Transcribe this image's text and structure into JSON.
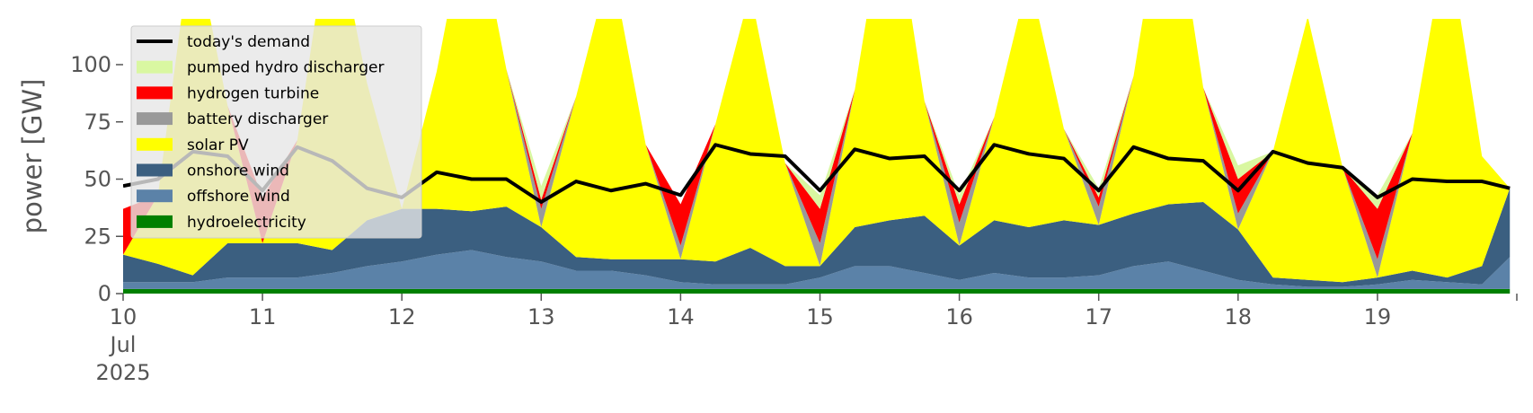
{
  "chart_data": {
    "type": "area",
    "ylabel": "power [GW]",
    "xlabel": "",
    "ylim": [
      0,
      120
    ],
    "xlim_days": [
      10,
      20
    ],
    "yticks": [
      0,
      25,
      50,
      75,
      100
    ],
    "xticks": [
      {
        "day": 10,
        "lines": [
          "10",
          "Jul",
          "2025"
        ]
      },
      {
        "day": 11,
        "lines": [
          "11"
        ]
      },
      {
        "day": 12,
        "lines": [
          "12"
        ]
      },
      {
        "day": 13,
        "lines": [
          "13"
        ]
      },
      {
        "day": 14,
        "lines": [
          "14"
        ]
      },
      {
        "day": 15,
        "lines": [
          "15"
        ]
      },
      {
        "day": 16,
        "lines": [
          "16"
        ]
      },
      {
        "day": 17,
        "lines": [
          "17"
        ]
      },
      {
        "day": 18,
        "lines": [
          "18"
        ]
      },
      {
        "day": 19,
        "lines": [
          "19"
        ]
      }
    ],
    "x_days": [
      10.0,
      10.25,
      10.5,
      10.75,
      11.0,
      11.25,
      11.5,
      11.75,
      12.0,
      12.25,
      12.5,
      12.75,
      13.0,
      13.25,
      13.5,
      13.75,
      14.0,
      14.25,
      14.5,
      14.75,
      15.0,
      15.25,
      15.5,
      15.75,
      16.0,
      16.25,
      16.5,
      16.75,
      17.0,
      17.25,
      17.5,
      17.75,
      18.0,
      18.25,
      18.5,
      18.75,
      19.0,
      19.25,
      19.5,
      19.75,
      19.95
    ],
    "series": [
      {
        "name": "hydroelectricity",
        "color": "#008000",
        "values": [
          2,
          2,
          2,
          2,
          2,
          2,
          2,
          2,
          2,
          2,
          2,
          2,
          2,
          2,
          2,
          2,
          2,
          2,
          2,
          2,
          2,
          2,
          2,
          2,
          2,
          2,
          2,
          2,
          2,
          2,
          2,
          2,
          2,
          2,
          2,
          2,
          2,
          2,
          2,
          2,
          2
        ]
      },
      {
        "name": "offshore wind",
        "color": "#5b82a8",
        "values": [
          3,
          3,
          3,
          5,
          5,
          5,
          7,
          10,
          12,
          15,
          17,
          14,
          12,
          8,
          8,
          6,
          3,
          2,
          2,
          2,
          5,
          10,
          10,
          7,
          4,
          7,
          5,
          5,
          6,
          10,
          12,
          8,
          4,
          2,
          1,
          1,
          2,
          4,
          3,
          2,
          14
        ]
      },
      {
        "name": "onshore wind",
        "color": "#3b5f80",
        "values": [
          12,
          8,
          3,
          15,
          15,
          15,
          10,
          20,
          23,
          20,
          17,
          22,
          15,
          6,
          5,
          7,
          10,
          10,
          16,
          8,
          5,
          17,
          20,
          25,
          15,
          23,
          22,
          25,
          22,
          23,
          25,
          30,
          22,
          3,
          3,
          2,
          3,
          4,
          2,
          8,
          30
        ]
      },
      {
        "name": "solar PV",
        "color": "#ffff00",
        "values": [
          0,
          30,
          150,
          60,
          0,
          45,
          150,
          60,
          0,
          60,
          140,
          60,
          0,
          70,
          130,
          50,
          0,
          60,
          112,
          45,
          0,
          60,
          150,
          50,
          0,
          45,
          110,
          40,
          0,
          60,
          150,
          50,
          0,
          55,
          115,
          50,
          0,
          60,
          150,
          48,
          0
        ]
      },
      {
        "name": "battery discharger",
        "color": "#999999",
        "values": [
          0,
          0,
          0,
          0,
          0,
          0,
          0,
          0,
          0,
          0,
          0,
          0,
          8,
          0,
          0,
          0,
          6,
          0,
          0,
          0,
          10,
          0,
          0,
          0,
          10,
          0,
          0,
          0,
          8,
          0,
          0,
          0,
          7,
          0,
          0,
          0,
          8,
          0,
          0,
          0,
          0
        ]
      },
      {
        "name": "hydrogen turbine",
        "color": "#ff0000",
        "values": [
          20,
          0,
          0,
          0,
          20,
          0,
          0,
          0,
          0,
          0,
          0,
          0,
          4,
          0,
          0,
          0,
          18,
          0,
          0,
          0,
          15,
          0,
          0,
          0,
          8,
          0,
          0,
          0,
          4,
          0,
          0,
          0,
          15,
          0,
          0,
          0,
          22,
          0,
          0,
          0,
          0
        ]
      },
      {
        "name": "pumped hydro discharger",
        "color": "#d9f7a1",
        "values": [
          0,
          0,
          0,
          0,
          0,
          0,
          0,
          0,
          0,
          0,
          0,
          0,
          6,
          0,
          0,
          0,
          0,
          0,
          0,
          0,
          6,
          0,
          0,
          0,
          4,
          0,
          0,
          0,
          4,
          0,
          0,
          0,
          6,
          0,
          0,
          0,
          6,
          0,
          0,
          0,
          0
        ]
      }
    ],
    "demand": {
      "name": "today's demand",
      "color": "#000000",
      "values": [
        47,
        50,
        62,
        60,
        45,
        64,
        58,
        46,
        42,
        53,
        50,
        50,
        40,
        49,
        45,
        48,
        43,
        65,
        61,
        60,
        45,
        63,
        59,
        60,
        45,
        65,
        61,
        59,
        45,
        64,
        59,
        58,
        45,
        62,
        57,
        55,
        42,
        50,
        49,
        49,
        46
      ]
    },
    "legend": {
      "placement": "top-left",
      "entries": [
        {
          "label": "today's demand",
          "color": "#000000",
          "kind": "line"
        },
        {
          "label": "pumped hydro discharger",
          "color": "#d9f7a1",
          "kind": "patch"
        },
        {
          "label": "hydrogen turbine",
          "color": "#ff0000",
          "kind": "patch"
        },
        {
          "label": "battery discharger",
          "color": "#999999",
          "kind": "patch"
        },
        {
          "label": "solar PV",
          "color": "#ffff00",
          "kind": "patch"
        },
        {
          "label": "onshore wind",
          "color": "#3b5f80",
          "kind": "patch"
        },
        {
          "label": "offshore wind",
          "color": "#5b82a8",
          "kind": "patch"
        },
        {
          "label": "hydroelectricity",
          "color": "#008000",
          "kind": "patch"
        }
      ]
    },
    "grid": false
  }
}
